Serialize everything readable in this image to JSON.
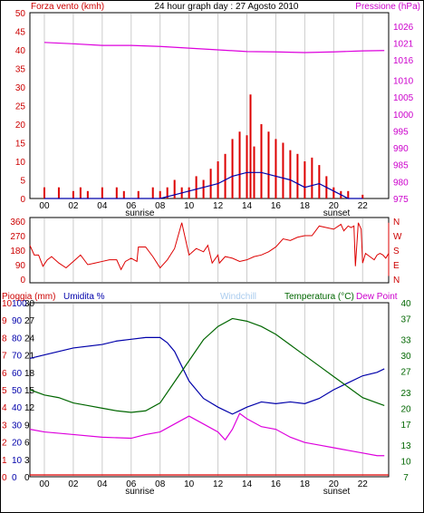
{
  "header": {
    "left_label": "Forza vento (kmh)",
    "title": "24 hour graph day : 27 Agosto 2010",
    "right_label": "Pressione (hPa)"
  },
  "colors": {
    "red": "#dd0000",
    "blue": "#0000aa",
    "magenta": "#dd00dd",
    "green": "#006600",
    "lightblue": "#aaccee",
    "grid": "#cccccc"
  },
  "x_ticks": [
    "00",
    "02",
    "04",
    "06",
    "08",
    "10",
    "12",
    "14",
    "16",
    "18",
    "20",
    "22"
  ],
  "sun_labels": {
    "sunrise": "sunrise",
    "sunset": "sunset"
  },
  "chart_data": [
    {
      "type": "bar",
      "title": "24 hour graph day : 27 Agosto 2010",
      "series": [
        {
          "name": "Forza vento (kmh)",
          "axis": "left",
          "style": "bar",
          "x": [
            0,
            1,
            2,
            2.5,
            3,
            4,
            5,
            5.5,
            6.5,
            7.5,
            8,
            8.5,
            9,
            9.5,
            10,
            10.5,
            11,
            11.5,
            12,
            12.5,
            13,
            13.5,
            14,
            14.25,
            14.5,
            15,
            15.5,
            16,
            16.5,
            17,
            17.5,
            18,
            18.5,
            19,
            19.5,
            20,
            20.5,
            21,
            22
          ],
          "values": [
            3,
            3,
            2,
            3,
            2,
            3,
            3,
            2,
            2,
            3,
            2,
            3,
            5,
            3,
            3,
            6,
            5,
            8,
            10,
            12,
            16,
            18,
            17,
            28,
            14,
            20,
            18,
            16,
            15,
            13,
            12,
            10,
            11,
            9,
            6,
            3,
            2,
            2,
            1
          ]
        },
        {
          "name": "Raffica",
          "axis": "left",
          "style": "line",
          "x": [
            0,
            8,
            9,
            10,
            11,
            12,
            13,
            14,
            15,
            16,
            17,
            18,
            19,
            20,
            21,
            22
          ],
          "values": [
            0,
            0,
            1,
            2,
            3,
            4,
            6,
            7,
            7,
            6,
            5,
            3,
            4,
            2,
            0,
            0
          ]
        },
        {
          "name": "Pressione (hPa)",
          "axis": "right",
          "style": "line",
          "x": [
            0,
            2,
            4,
            6,
            8,
            10,
            12,
            14,
            16,
            18,
            20,
            22,
            23.5
          ],
          "values": [
            1021.2,
            1020.8,
            1020.3,
            1020.3,
            1020.0,
            1019.5,
            1019.0,
            1018.5,
            1018.4,
            1018.2,
            1018.4,
            1018.7,
            1018.8
          ]
        }
      ],
      "x_range": [
        -1,
        23.8
      ],
      "ylim_left": [
        0,
        50
      ],
      "y_ticks_left": [
        0,
        5,
        10,
        15,
        20,
        25,
        30,
        35,
        40,
        45,
        50
      ],
      "ylim_right": [
        975,
        1030
      ],
      "y_ticks_right": [
        975,
        980,
        985,
        990,
        995,
        1000,
        1005,
        1010,
        1016,
        1021,
        1026
      ],
      "grid": true
    },
    {
      "type": "line",
      "series": [
        {
          "name": "Direzione vento",
          "values_degrees": [
            210,
            150,
            150,
            80,
            120,
            140,
            100,
            70,
            110,
            150,
            90,
            100,
            110,
            120,
            120,
            60,
            110,
            130,
            110,
            200,
            200,
            140,
            70,
            120,
            190,
            350,
            150,
            190,
            170,
            210,
            100,
            150,
            100,
            140,
            130,
            110,
            120,
            140,
            150,
            170,
            200,
            250,
            240,
            260,
            270,
            270,
            330,
            320,
            310,
            340,
            300,
            310,
            330,
            320,
            330,
            80,
            350,
            310,
            100,
            160,
            140,
            120,
            150,
            160,
            150,
            130,
            160,
            180,
            350,
            130,
            100,
            80,
            100,
            110,
            20
          ],
          "x": [
            -1,
            -0.7,
            -0.4,
            -0.1,
            0.2,
            0.5,
            1,
            1.5,
            2,
            2.5,
            3,
            3.5,
            4,
            4.5,
            5,
            5.3,
            5.6,
            6,
            6.4,
            6.5,
            7,
            7.5,
            8,
            8.5,
            9,
            9.5,
            10,
            10.5,
            11,
            11.3,
            11.6,
            12,
            12.1,
            12.5,
            13,
            13.5,
            14,
            14.5,
            15,
            15.5,
            16,
            16.5,
            17,
            17.5,
            18,
            18.5,
            19,
            19.5,
            20,
            20.5,
            20.7,
            20.8,
            21,
            21.2,
            21.4,
            21.5,
            21.7,
            21.9,
            22,
            22.2,
            22.5,
            22.8,
            23,
            23.2,
            23.4,
            23.6,
            23.8,
            23.8,
            23.8,
            23.8,
            23.8,
            23.8,
            23.8,
            23.8,
            23.8
          ]
        }
      ],
      "y_ticks": [
        0,
        90,
        180,
        270,
        360
      ],
      "compass": [
        "N",
        "W",
        "S",
        "E",
        "N"
      ],
      "ylim": [
        0,
        360
      ]
    },
    {
      "type": "line",
      "header_labels": {
        "rain": "Pioggia (mm)",
        "humidity": "Umidita %",
        "windchill": "Windchill",
        "temperature": "Temperatura (°C)",
        "dewpoint": "Dew Point"
      },
      "series": [
        {
          "name": "Umidita %",
          "axis": "humidity",
          "color": "blue",
          "x": [
            -1,
            0,
            2,
            4,
            5,
            6,
            7,
            8,
            8.5,
            9,
            10,
            11,
            12,
            12.5,
            13,
            13.5,
            14,
            15,
            16,
            17,
            18,
            19,
            20,
            21,
            22,
            23,
            23.5
          ],
          "values": [
            68,
            70,
            74,
            76,
            78,
            79,
            80,
            80,
            77,
            72,
            55,
            45,
            40,
            38,
            36,
            38,
            40,
            43,
            42,
            43,
            42,
            45,
            50,
            54,
            58,
            60,
            62
          ]
        },
        {
          "name": "Temperatura (°C)",
          "axis": "temperature",
          "color": "green",
          "x": [
            -1,
            0,
            1,
            2,
            3,
            4,
            5,
            6,
            7,
            8,
            9,
            10,
            11,
            12,
            13,
            14,
            15,
            16,
            17,
            18,
            19,
            20,
            21,
            22,
            23,
            23.5
          ],
          "values": [
            23.5,
            22.5,
            22,
            21,
            20.5,
            20,
            19.5,
            19.2,
            19.5,
            21,
            25,
            29,
            33,
            35.5,
            37,
            36.5,
            35.5,
            34,
            32,
            30,
            28,
            26,
            24,
            22,
            21,
            20.5
          ]
        },
        {
          "name": "Dew Point",
          "axis": "temperature",
          "color": "magenta",
          "x": [
            -1,
            0,
            2,
            4,
            6,
            7,
            8,
            9,
            10,
            11,
            12,
            12.5,
            13,
            13.5,
            14,
            15,
            16,
            17,
            18,
            19,
            20,
            21,
            22,
            23,
            23.5
          ],
          "values": [
            16,
            15.5,
            15,
            14.5,
            14.3,
            15,
            15.5,
            17,
            18.5,
            17,
            15.5,
            14,
            16,
            19,
            18,
            16.5,
            16,
            14.5,
            13.5,
            13,
            12.5,
            12,
            11.5,
            11,
            11
          ]
        },
        {
          "name": "Pioggia (mm)",
          "axis": "rain",
          "color": "red",
          "x": [
            -1,
            23.8
          ],
          "values": [
            0,
            0
          ]
        }
      ],
      "ticks_rain": [
        0,
        1,
        2,
        3,
        4,
        5,
        6,
        7,
        8,
        9,
        10
      ],
      "ticks_humidity": [
        0,
        6,
        12,
        18,
        24,
        30,
        36,
        42,
        48,
        54,
        60,
        66,
        72,
        78,
        84,
        90,
        96,
        100
      ],
      "ticks_humidity_labels": [
        "0",
        "10",
        "20",
        "30",
        "40",
        "50",
        "60",
        "70",
        "80",
        "90",
        "100"
      ],
      "ticks_mid": [
        "0",
        "3",
        "6",
        "9",
        "12",
        "15",
        "18",
        "21",
        "24",
        "27",
        "30"
      ],
      "ticks_temperature": [
        7,
        10,
        13,
        17,
        20,
        23,
        27,
        30,
        33,
        37,
        40
      ],
      "ylim_humidity": [
        0,
        100
      ],
      "ylim_temperature": [
        7,
        40
      ]
    }
  ]
}
